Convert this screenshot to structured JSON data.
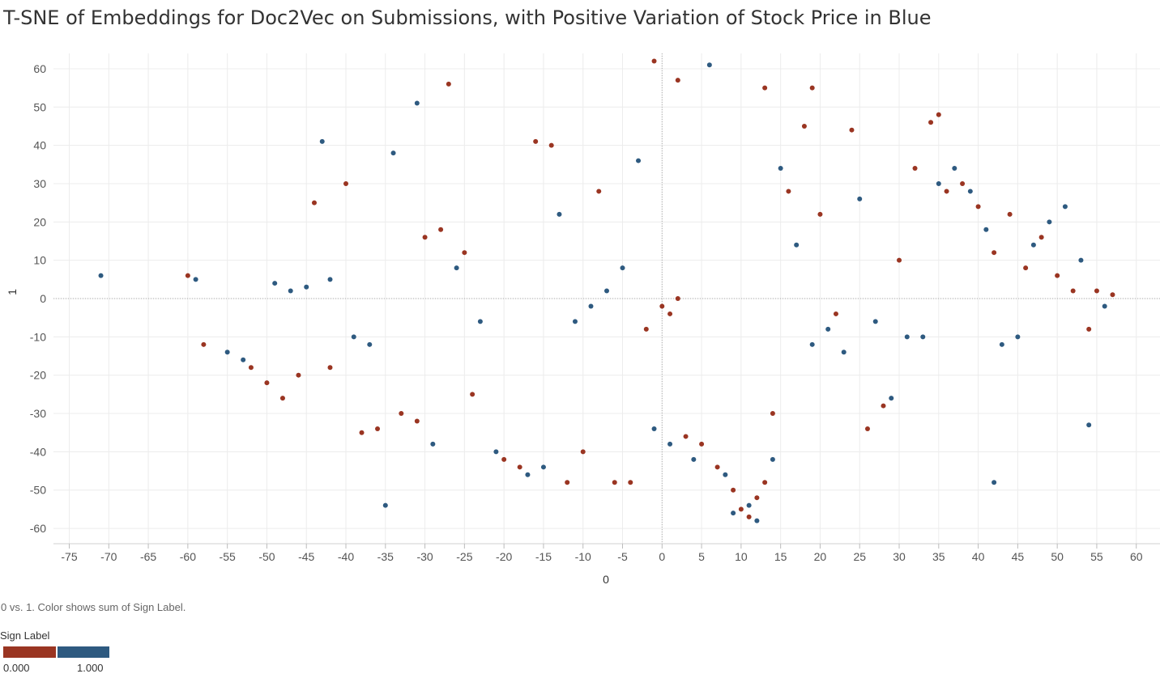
{
  "chart_data": {
    "type": "scatter",
    "title": "T-SNE of Embeddings for Doc2Vec on Submissions, with Positive Variation of Stock Price in Blue",
    "xlabel": "0",
    "ylabel": "1",
    "xlim": [
      -77,
      63
    ],
    "ylim": [
      -64,
      64
    ],
    "x_ticks": [
      -75,
      -70,
      -65,
      -60,
      -55,
      -50,
      -45,
      -40,
      -35,
      -30,
      -25,
      -20,
      -15,
      -10,
      -5,
      0,
      5,
      10,
      15,
      20,
      25,
      30,
      35,
      40,
      45,
      50,
      55,
      60
    ],
    "y_ticks": [
      60,
      50,
      40,
      30,
      20,
      10,
      0,
      -10,
      -20,
      -30,
      -40,
      -50,
      -60
    ],
    "grid": true,
    "zero_lines": true,
    "legend_placement": "bottom-left",
    "series": [
      {
        "name": "0.000",
        "color": "#9a3522",
        "points": [
          [
            -60,
            6
          ],
          [
            -58,
            -12
          ],
          [
            -52,
            -18
          ],
          [
            -50,
            -22
          ],
          [
            -48,
            -26
          ],
          [
            -46,
            -20
          ],
          [
            -44,
            25
          ],
          [
            -42,
            -18
          ],
          [
            -40,
            30
          ],
          [
            -38,
            -35
          ],
          [
            -36,
            -34
          ],
          [
            -33,
            -30
          ],
          [
            -31,
            -32
          ],
          [
            -30,
            16
          ],
          [
            -28,
            18
          ],
          [
            -27,
            56
          ],
          [
            -25,
            12
          ],
          [
            -24,
            -25
          ],
          [
            -20,
            -42
          ],
          [
            -18,
            -44
          ],
          [
            -16,
            41
          ],
          [
            -14,
            40
          ],
          [
            -12,
            -48
          ],
          [
            -10,
            -40
          ],
          [
            -8,
            28
          ],
          [
            -6,
            -48
          ],
          [
            -4,
            -48
          ],
          [
            -2,
            -8
          ],
          [
            0,
            -2
          ],
          [
            1,
            -4
          ],
          [
            2,
            0
          ],
          [
            3,
            -36
          ],
          [
            5,
            -38
          ],
          [
            7,
            -44
          ],
          [
            9,
            -50
          ],
          [
            10,
            -55
          ],
          [
            11,
            -57
          ],
          [
            12,
            -52
          ],
          [
            13,
            -48
          ],
          [
            14,
            -30
          ],
          [
            16,
            28
          ],
          [
            18,
            45
          ],
          [
            20,
            22
          ],
          [
            22,
            -4
          ],
          [
            24,
            44
          ],
          [
            26,
            -34
          ],
          [
            28,
            -28
          ],
          [
            30,
            10
          ],
          [
            32,
            34
          ],
          [
            34,
            46
          ],
          [
            36,
            28
          ],
          [
            38,
            30
          ],
          [
            40,
            24
          ],
          [
            42,
            12
          ],
          [
            44,
            22
          ],
          [
            46,
            8
          ],
          [
            48,
            16
          ],
          [
            50,
            6
          ],
          [
            52,
            2
          ],
          [
            54,
            -8
          ],
          [
            55,
            2
          ],
          [
            57,
            1
          ],
          [
            -1,
            62
          ],
          [
            2,
            57
          ],
          [
            13,
            55
          ],
          [
            19,
            55
          ],
          [
            35,
            48
          ]
        ]
      },
      {
        "name": "1.000",
        "color": "#2e5a80",
        "points": [
          [
            -71,
            6
          ],
          [
            -59,
            5
          ],
          [
            -55,
            -14
          ],
          [
            -53,
            -16
          ],
          [
            -49,
            4
          ],
          [
            -47,
            2
          ],
          [
            -45,
            3
          ],
          [
            -43,
            41
          ],
          [
            -42,
            5
          ],
          [
            -39,
            -10
          ],
          [
            -37,
            -12
          ],
          [
            -35,
            -54
          ],
          [
            -34,
            38
          ],
          [
            -31,
            51
          ],
          [
            -29,
            -38
          ],
          [
            -26,
            8
          ],
          [
            -23,
            -6
          ],
          [
            -21,
            -40
          ],
          [
            -17,
            -46
          ],
          [
            -15,
            -44
          ],
          [
            -13,
            22
          ],
          [
            -11,
            -6
          ],
          [
            -9,
            -2
          ],
          [
            -7,
            2
          ],
          [
            -5,
            8
          ],
          [
            -3,
            36
          ],
          [
            -1,
            -34
          ],
          [
            1,
            -38
          ],
          [
            4,
            -42
          ],
          [
            6,
            61
          ],
          [
            8,
            -46
          ],
          [
            9,
            -56
          ],
          [
            11,
            -54
          ],
          [
            12,
            -58
          ],
          [
            14,
            -42
          ],
          [
            15,
            34
          ],
          [
            17,
            14
          ],
          [
            19,
            -12
          ],
          [
            21,
            -8
          ],
          [
            23,
            -14
          ],
          [
            25,
            26
          ],
          [
            27,
            -6
          ],
          [
            29,
            -26
          ],
          [
            31,
            -10
          ],
          [
            33,
            -10
          ],
          [
            35,
            30
          ],
          [
            37,
            34
          ],
          [
            39,
            28
          ],
          [
            41,
            18
          ],
          [
            43,
            -12
          ],
          [
            45,
            -10
          ],
          [
            47,
            14
          ],
          [
            49,
            20
          ],
          [
            51,
            24
          ],
          [
            53,
            10
          ],
          [
            54,
            -33
          ],
          [
            56,
            -2
          ],
          [
            42,
            -48
          ]
        ]
      }
    ]
  },
  "caption": "0 vs. 1.  Color shows sum of Sign Label.",
  "legend": {
    "title": "Sign Label",
    "low_label": "0.000",
    "high_label": "1.000",
    "low_color": "#9a3522",
    "high_color": "#2e5a80"
  }
}
